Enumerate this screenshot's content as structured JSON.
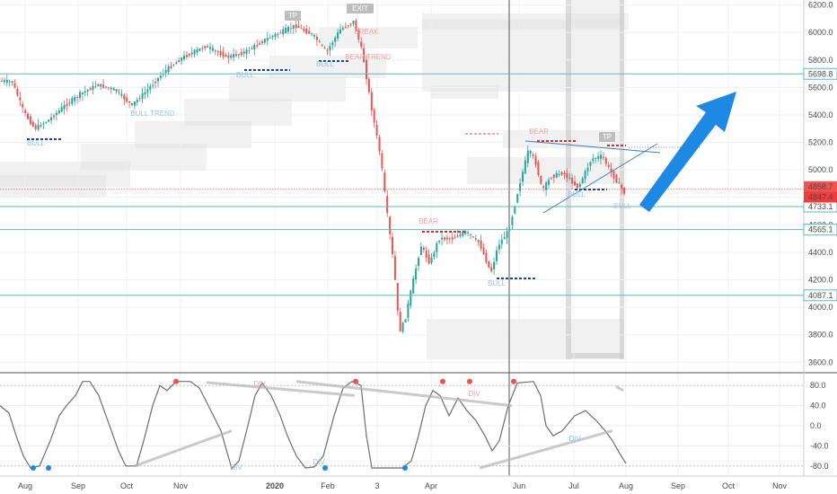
{
  "chart_data": {
    "type": "candlestick",
    "price_axis": {
      "ticks": [
        "6200.0",
        "6000.0",
        "5800.0",
        "5600.0",
        "5400.0",
        "5200.0",
        "5000.0",
        "4800.0",
        "4600.0",
        "4400.0",
        "4200.0",
        "4000.0",
        "3800.0",
        "3600.0"
      ],
      "tick_values": [
        6200,
        6000,
        5800,
        5600,
        5400,
        5200,
        5000,
        4800,
        4600,
        4400,
        4200,
        4000,
        3800,
        3600
      ],
      "range": [
        3530,
        6230
      ]
    },
    "time_axis": {
      "labels": [
        "Aug",
        "Sep",
        "Oct",
        "Nov",
        "2020",
        "Feb",
        "3",
        "Apr",
        "Jun",
        "Jul",
        "Aug",
        "Sep",
        "Oct",
        "Nov"
      ]
    },
    "horizontal_levels": [
      {
        "label": "5698.8",
        "value": 5698.8,
        "color": "#5fb7c4"
      },
      {
        "label": "4733.1",
        "value": 4733.1,
        "color": "#5fb7c4"
      },
      {
        "label": "4565.1",
        "value": 4565.1,
        "color": "#5fb7c4"
      },
      {
        "label": "4087.1",
        "value": 4087.1,
        "color": "#5fb7c4"
      }
    ],
    "price_markers": [
      {
        "label": "4858.7",
        "value": 4858.7,
        "color": "#f05350"
      },
      {
        "label": "4847.4",
        "value": 4847.4,
        "color": "#ef3d3d"
      }
    ],
    "annotations": [
      {
        "text": "TP",
        "color": "#9e9e9e"
      },
      {
        "text": "EXIT",
        "color": "#757575"
      },
      {
        "text": "BREAK",
        "color": "#f5a3a3"
      },
      {
        "text": "BEAR TREND",
        "color": "#f5a3a3"
      },
      {
        "text": "BULL",
        "color": "#8ec5ee"
      },
      {
        "text": "BULL",
        "color": "#8ec5ee"
      },
      {
        "text": "BULL TREND",
        "color": "#8ec5ee"
      },
      {
        "text": "BULL",
        "color": "#8ec5ee"
      },
      {
        "text": "BEAR",
        "color": "#f5a3a3"
      },
      {
        "text": "BULL",
        "color": "#8ec5ee"
      },
      {
        "text": "BEAR",
        "color": "#f5a3a3"
      },
      {
        "text": "TP",
        "color": "#9e9e9e"
      },
      {
        "text": "BULL",
        "color": "#8ec5ee"
      },
      {
        "text": "BULL",
        "color": "#b9c8d6"
      }
    ],
    "oscillator": {
      "ticks": [
        "80.0",
        "40.0",
        "0.0",
        "-40.0",
        "-80.0"
      ],
      "tick_values": [
        80,
        40,
        0,
        -40,
        -80
      ],
      "range": [
        -100,
        100
      ],
      "labels": [
        {
          "text": "DIV",
          "color": "#f5a3a3"
        },
        {
          "text": "DIV",
          "color": "#f5a3a3"
        },
        {
          "text": "DIV",
          "color": "#8ec5ee"
        },
        {
          "text": "DIV",
          "color": "#8ec5ee"
        },
        {
          "text": "DIV",
          "color": "#8ec5ee"
        }
      ]
    },
    "colors": {
      "up": "#26a69a",
      "down": "#ef5350",
      "bull_line": "#1e3f9e",
      "bear_line": "#d32f2f",
      "arrow": "#1e88e5",
      "level": "#5fb7c4",
      "zone": "#e0e0e0"
    }
  }
}
